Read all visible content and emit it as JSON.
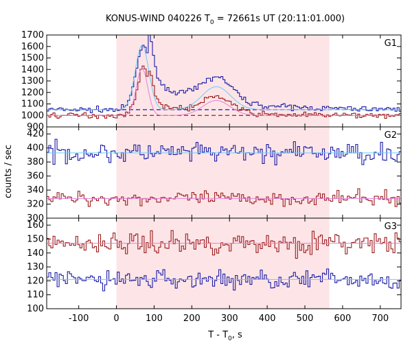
{
  "chart_data": {
    "type": "line",
    "title": "KONUS-WIND 040226 T",
    "title_sub": "0",
    "title_rest": " = 72661s UT (20:11:01.000)",
    "xlabel": "T - T",
    "xlabel_sub": "0",
    "xlabel_rest": ", s",
    "ylabel": "counts / sec",
    "xlim": [
      -185,
      755
    ],
    "x_ticks": [
      -100,
      0,
      100,
      200,
      300,
      400,
      500,
      600,
      700
    ],
    "highlight_x": [
      0,
      565
    ],
    "colors": {
      "blue": "#1a1aa6",
      "red": "#9b1b1b",
      "fit_blue": "#66ccff",
      "fit_red": "#e37fd6",
      "highlight": "#fde5e7"
    },
    "panels": [
      {
        "name": "G1",
        "ylim": [
          900,
          1700
        ],
        "y_ticks": [
          900,
          1000,
          1100,
          1200,
          1300,
          1400,
          1500,
          1600,
          1700
        ],
        "series": [
          {
            "color": "blue",
            "baseline": 1050,
            "noise": 12,
            "peaks": [
              [
                70,
                560,
                20
              ],
              [
                265,
                210,
                40
              ]
            ],
            "decay": [
              [
                80,
                240,
                160
              ]
            ]
          },
          {
            "color": "red",
            "baseline": 1000,
            "noise": 12,
            "peaks": [
              [
                70,
                420,
                17
              ],
              [
                265,
                140,
                38
              ]
            ],
            "decay": [
              [
                80,
                120,
                120
              ]
            ]
          }
        ],
        "background_levels": [
          {
            "color": "blue",
            "value": 1050
          },
          {
            "color": "red",
            "value": 1000
          }
        ],
        "fits": [
          {
            "color": "fit_blue",
            "peaks": [
              [
                68,
                560,
                18
              ],
              [
                265,
                200,
                38
              ]
            ],
            "baseline": 1050
          },
          {
            "color": "fit_red",
            "peaks": [
              [
                68,
                410,
                15
              ],
              [
                265,
                130,
                36
              ]
            ],
            "baseline": 1000
          }
        ]
      },
      {
        "name": "G2",
        "ylim": [
          300,
          430
        ],
        "y_ticks": [
          300,
          320,
          340,
          360,
          380,
          400,
          420
        ],
        "series": [
          {
            "color": "blue",
            "baseline": 393,
            "noise": 7
          },
          {
            "color": "red",
            "baseline": 328,
            "noise": 5
          }
        ],
        "fits": [
          {
            "color": "fit_blue",
            "baseline": 393
          },
          {
            "color": "fit_red",
            "baseline": 328
          }
        ]
      },
      {
        "name": "G3",
        "ylim": [
          100,
          165
        ],
        "y_ticks": [
          100,
          110,
          120,
          130,
          140,
          150,
          160
        ],
        "series": [
          {
            "color": "red",
            "baseline": 147,
            "noise": 4
          },
          {
            "color": "blue",
            "baseline": 121,
            "noise": 3.5
          }
        ],
        "fits": [
          {
            "color": "fit_red",
            "baseline": 147
          },
          {
            "color": "fit_blue",
            "baseline": 121
          }
        ]
      }
    ]
  }
}
